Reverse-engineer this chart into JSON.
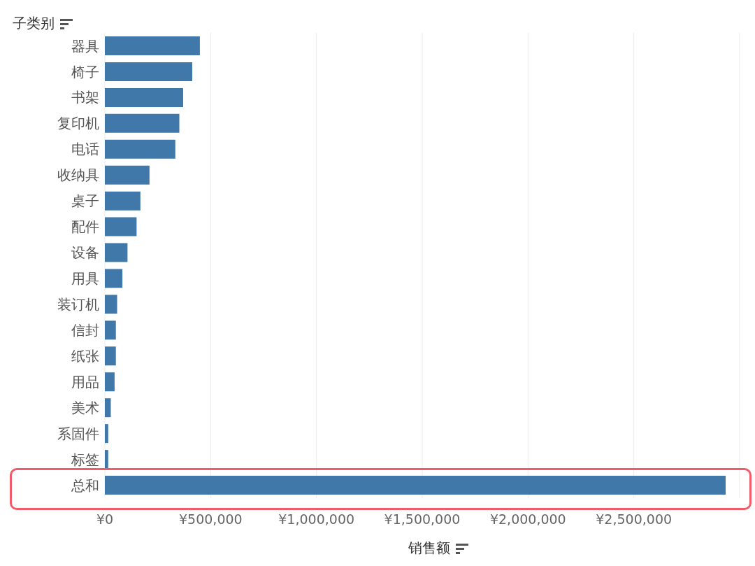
{
  "chart_data": {
    "type": "bar",
    "orientation": "horizontal",
    "ylabel": "子类别",
    "xlabel": "销售额",
    "categories": [
      "器具",
      "椅子",
      "书架",
      "复印机",
      "电话",
      "收纳具",
      "桌子",
      "配件",
      "设备",
      "用具",
      "装订机",
      "信封",
      "纸张",
      "用品",
      "美术",
      "系固件",
      "标签",
      "总和"
    ],
    "values": [
      449000,
      413000,
      370000,
      352000,
      333000,
      211000,
      168000,
      150000,
      107000,
      83000,
      58000,
      52000,
      52000,
      46000,
      28000,
      16000,
      16000,
      2934000
    ],
    "color": "#4178aa",
    "xlim": [
      0,
      3000000
    ],
    "xticks": [
      {
        "value": 0,
        "label": "¥0"
      },
      {
        "value": 500000,
        "label": "¥500,000"
      },
      {
        "value": 1000000,
        "label": "¥1,000,000"
      },
      {
        "value": 1500000,
        "label": "¥1,500,000"
      },
      {
        "value": 2000000,
        "label": "¥2,000,000"
      },
      {
        "value": 2500000,
        "label": "¥2,500,000"
      },
      {
        "value": 3000000,
        "label": null
      }
    ],
    "grid": "x"
  }
}
